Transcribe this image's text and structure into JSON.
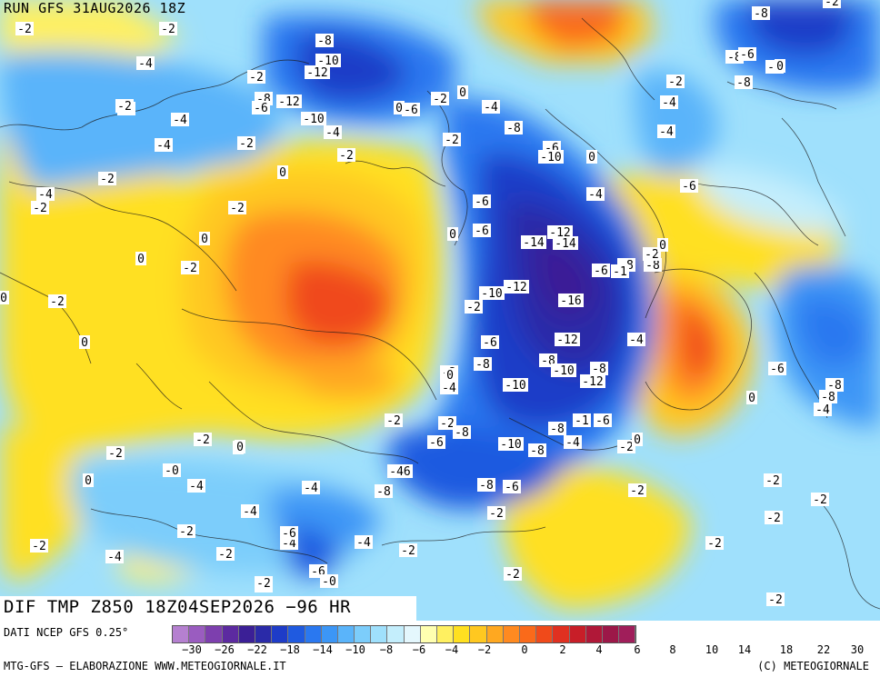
{
  "run_title": "RUN GFS 31AUG2026 18Z",
  "field_title": "DIF TMP Z850 18Z04SEP2026 −96 HR",
  "source": "DATI NCEP GFS 0.25°",
  "credit_left": "MTG-GFS — ELABORAZIONE WWW.METEOGIORNALE.IT",
  "credit_right": "(C) METEOGIORNALE",
  "colorbar": {
    "colors": [
      "#b580d0",
      "#9a5cc0",
      "#7d3fae",
      "#5c2aa0",
      "#3b1f96",
      "#2a2aa8",
      "#1e3cc8",
      "#1f5ae0",
      "#2a78f0",
      "#3c96f6",
      "#5ab4fa",
      "#7ccdfb",
      "#9fe0fc",
      "#c4eefc",
      "#e4f7fd",
      "#ffffb0",
      "#fff060",
      "#ffe020",
      "#ffc820",
      "#ffa820",
      "#ff8a20",
      "#fa6a1a",
      "#f04a1a",
      "#e03020",
      "#c81e28",
      "#b01838",
      "#9c1848",
      "#a01e5a"
    ],
    "ticks": [
      "−30",
      "−26",
      "−22",
      "−18",
      "−14",
      "−10",
      "−8",
      "−6",
      "−4",
      "−2",
      "0",
      "2",
      "4",
      "6",
      "8",
      "10",
      "14",
      "18",
      "22",
      "30"
    ]
  },
  "labels": [
    {
      "t": "-2"
    },
    {
      "t": "-4"
    },
    {
      "t": "-2"
    },
    {
      "t": "-4"
    },
    {
      "t": "-8"
    },
    {
      "t": "-10"
    },
    {
      "t": "-12"
    },
    {
      "t": "-2"
    },
    {
      "t": "-8"
    },
    {
      "t": "-12"
    },
    {
      "t": "-6"
    },
    {
      "t": "-10"
    },
    {
      "t": "-4"
    },
    {
      "t": "0"
    },
    {
      "t": "-6"
    },
    {
      "t": "-2"
    },
    {
      "t": "0"
    },
    {
      "t": "-4"
    },
    {
      "t": "-8"
    },
    {
      "t": "-2"
    },
    {
      "t": "-6"
    },
    {
      "t": "-10"
    },
    {
      "t": "0"
    },
    {
      "t": "-4"
    },
    {
      "t": "-6"
    },
    {
      "t": "-2"
    },
    {
      "t": "-4"
    },
    {
      "t": "-2"
    },
    {
      "t": "-4"
    },
    {
      "t": "-2"
    },
    {
      "t": "0"
    },
    {
      "t": "-2"
    },
    {
      "t": "-4"
    },
    {
      "t": "-2"
    },
    {
      "t": "0"
    },
    {
      "t": "0"
    },
    {
      "t": "-2"
    },
    {
      "t": "-2"
    },
    {
      "t": "0"
    },
    {
      "t": "0"
    },
    {
      "t": "-2"
    },
    {
      "t": "-12"
    },
    {
      "t": "-14"
    },
    {
      "t": "-14"
    },
    {
      "t": "-6"
    },
    {
      "t": "-8"
    },
    {
      "t": "-8"
    },
    {
      "t": "-2"
    },
    {
      "t": "0"
    },
    {
      "t": "-1"
    },
    {
      "t": "-6"
    },
    {
      "t": "-10"
    },
    {
      "t": "-12"
    },
    {
      "t": "-16"
    },
    {
      "t": "-2"
    },
    {
      "t": "0"
    },
    {
      "t": "-2"
    },
    {
      "t": "-4"
    },
    {
      "t": "-6"
    },
    {
      "t": "-12"
    },
    {
      "t": "-4"
    },
    {
      "t": "-8"
    },
    {
      "t": "-8"
    },
    {
      "t": "-10"
    },
    {
      "t": "-8"
    },
    {
      "t": "-12"
    },
    {
      "t": "0"
    },
    {
      "t": "-4"
    },
    {
      "t": "-10"
    },
    {
      "t": "-2"
    },
    {
      "t": "-8"
    },
    {
      "t": "-8"
    },
    {
      "t": "-4"
    },
    {
      "t": "-2"
    },
    {
      "t": "0"
    },
    {
      "t": "-1"
    },
    {
      "t": "-6"
    },
    {
      "t": "-6"
    },
    {
      "t": "-10"
    },
    {
      "t": "-8"
    },
    {
      "t": "-2"
    },
    {
      "t": "0"
    },
    {
      "t": "0"
    },
    {
      "t": "0"
    },
    {
      "t": "-2"
    },
    {
      "t": "-0"
    },
    {
      "t": "-4"
    },
    {
      "t": "-2"
    },
    {
      "t": "-4"
    },
    {
      "t": "-46"
    },
    {
      "t": "-8"
    },
    {
      "t": "-8"
    },
    {
      "t": "-6"
    },
    {
      "t": "-2"
    },
    {
      "t": "-4"
    },
    {
      "t": "-2"
    },
    {
      "t": "-4"
    },
    {
      "t": "-6"
    },
    {
      "t": "-4"
    },
    {
      "t": "-2"
    },
    {
      "t": "-2"
    },
    {
      "t": "-6"
    },
    {
      "t": "-0"
    },
    {
      "t": "-2"
    },
    {
      "t": "-4"
    },
    {
      "t": "-2"
    },
    {
      "t": "-2"
    },
    {
      "t": "-2"
    },
    {
      "t": "-2"
    },
    {
      "t": "-2"
    },
    {
      "t": "-2"
    },
    {
      "t": "-2"
    },
    {
      "t": "-2"
    },
    {
      "t": "-2"
    },
    {
      "t": "-8"
    },
    {
      "t": "-8"
    },
    {
      "t": "-4"
    },
    {
      "t": "0"
    },
    {
      "t": "-6"
    },
    {
      "t": "-2"
    },
    {
      "t": "-4"
    },
    {
      "t": "-4"
    },
    {
      "t": "-6"
    },
    {
      "t": "-8"
    },
    {
      "t": "-8"
    },
    {
      "t": "-2"
    },
    {
      "t": "0"
    },
    {
      "t": "-2"
    },
    {
      "t": "-8"
    },
    {
      "t": "-6"
    },
    {
      "t": "-10"
    },
    {
      "t": "-4"
    },
    {
      "t": "-2"
    },
    {
      "t": "-6"
    },
    {
      "t": "-2"
    },
    {
      "t": "-8"
    },
    {
      "t": "-4"
    }
  ]
}
